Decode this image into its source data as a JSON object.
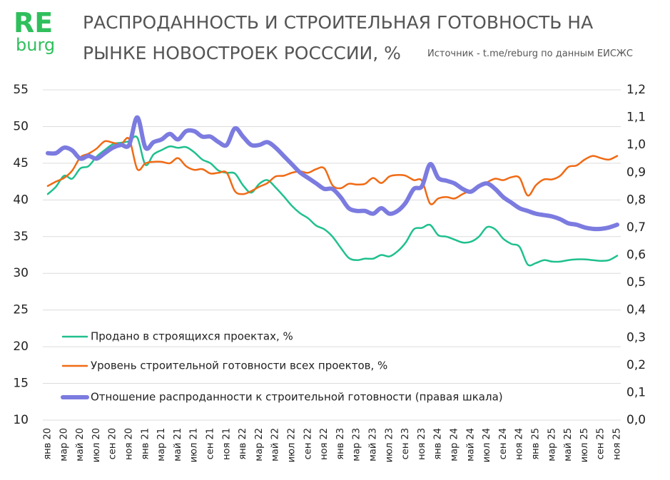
{
  "logo": {
    "top": "RE",
    "bottom": "burg"
  },
  "chart_data": {
    "type": "line",
    "title": "РАСПРОДАННОСТЬ И СТРОИТЕЛЬНАЯ ГОТОВНОСТЬ НА РЫНКЕ НОВОСТРОЕК РОСССИИ, %",
    "source": "Источник - t.me/reburg по данным ЕИСЖС",
    "categories": [
      "янв 20",
      null,
      "мар 20",
      null,
      "май 20",
      null,
      "июл 20",
      null,
      "сен 20",
      null,
      "ноя 20",
      null,
      "янв 21",
      null,
      "мар 21",
      null,
      "май 21",
      null,
      "июл 21",
      null,
      "сен 21",
      null,
      "ноя 21",
      null,
      "янв 22",
      null,
      "мар 22",
      null,
      "май 22",
      null,
      "июл 22",
      null,
      "сен 22",
      null,
      "ноя 22",
      null,
      "янв 23",
      null,
      "мар 23",
      null,
      "май 23",
      null,
      "июл 23",
      null,
      "сен 23",
      null,
      "ноя 23",
      null,
      "янв 24",
      null,
      "мар 24",
      null,
      "май 24",
      null,
      "июл 24",
      null,
      "сен 24",
      null,
      "ноя 24",
      null,
      "янв 25",
      null,
      "мар 25",
      null,
      "май 25",
      null,
      "июл 25",
      null,
      "сен 25",
      null,
      "ноя 25"
    ],
    "ylim": [
      10,
      55
    ],
    "yticks": [
      10,
      15,
      20,
      25,
      30,
      35,
      40,
      45,
      50,
      55
    ],
    "y2lim": [
      0,
      1.2
    ],
    "y2ticks": [
      {
        "value": 0,
        "label": "0,0"
      },
      {
        "value": 0.1,
        "label": "0,1"
      },
      {
        "value": 0.2,
        "label": "0,2"
      },
      {
        "value": 0.3,
        "label": "0,3"
      },
      {
        "value": 0.4,
        "label": "0,4"
      },
      {
        "value": 0.5,
        "label": "0,5"
      },
      {
        "value": 0.6,
        "label": "0,6"
      },
      {
        "value": 0.7,
        "label": "0,7"
      },
      {
        "value": 0.8,
        "label": "0,8"
      },
      {
        "value": 0.9,
        "label": "0,9"
      },
      {
        "value": 1,
        "label": "1,0"
      },
      {
        "value": 1.1,
        "label": "1,1"
      },
      {
        "value": 1.2,
        "label": "1,2"
      }
    ],
    "grid": true,
    "legend": "lower left",
    "series": [
      {
        "name": "Продано в строящихся проектах, %",
        "color": "#1fc08e",
        "width": 2.5,
        "values": [
          40.8,
          41.8,
          43.3,
          42.9,
          44.3,
          44.6,
          45.9,
          46.8,
          47.6,
          47.8,
          48,
          48.5,
          44.8,
          46.2,
          46.8,
          47.3,
          47.1,
          47.2,
          46.5,
          45.5,
          45,
          44,
          43.7,
          43.6,
          42,
          41,
          42.2,
          42.7,
          41.7,
          40.5,
          39.2,
          38.2,
          37.5,
          36.5,
          36,
          35,
          33.5,
          32.1,
          31.8,
          32,
          32,
          32.5,
          32.3,
          33,
          34.2,
          36,
          36.2,
          36.6,
          35.2,
          35,
          34.6,
          34.2,
          34.3,
          35,
          36.3,
          36,
          34.7,
          34,
          33.6,
          31.2,
          31.4,
          31.8,
          31.6,
          31.6,
          31.8,
          31.9,
          31.9,
          31.8,
          31.7,
          31.8,
          32.4
        ]
      },
      {
        "name": "Уровень строительной готовности всех проектов, %",
        "color": "#f06a14",
        "width": 2.5,
        "values": [
          41.9,
          42.5,
          43,
          44,
          45.8,
          46.3,
          47,
          48,
          47.8,
          47.6,
          48.3,
          44.2,
          45,
          45.2,
          45.2,
          45,
          45.7,
          44.6,
          44.1,
          44.2,
          43.6,
          43.7,
          43.7,
          41.2,
          40.8,
          41.2,
          41.8,
          42.3,
          43.2,
          43.3,
          43.7,
          43.9,
          43.7,
          44.2,
          44.3,
          42,
          41.6,
          42.2,
          42.1,
          42.2,
          43,
          42.3,
          43.2,
          43.4,
          43.3,
          42.7,
          42.6,
          39.5,
          40.2,
          40.4,
          40.2,
          40.8,
          41.3,
          41.8,
          42.4,
          42.9,
          42.7,
          43.1,
          43,
          40.6,
          42,
          42.8,
          42.8,
          43.3,
          44.5,
          44.7,
          45.5,
          46,
          45.7,
          45.5,
          46
        ]
      },
      {
        "name": "Отношение распроданности к строительной готовности (правая шкала)",
        "color": "#7b7be0",
        "width": 6,
        "axis": "y2",
        "values": [
          0.97,
          0.97,
          0.99,
          0.98,
          0.95,
          0.96,
          0.95,
          0.97,
          0.99,
          1,
          1,
          1.1,
          0.99,
          1.01,
          1.02,
          1.04,
          1.02,
          1.05,
          1.05,
          1.03,
          1.03,
          1.01,
          1,
          1.06,
          1.03,
          1,
          1,
          1.01,
          0.99,
          0.96,
          0.93,
          0.9,
          0.88,
          0.86,
          0.84,
          0.84,
          0.81,
          0.77,
          0.76,
          0.76,
          0.75,
          0.77,
          0.75,
          0.76,
          0.79,
          0.84,
          0.85,
          0.93,
          0.88,
          0.87,
          0.86,
          0.84,
          0.83,
          0.85,
          0.86,
          0.84,
          0.81,
          0.79,
          0.77,
          0.76,
          0.75,
          0.745,
          0.74,
          0.73,
          0.715,
          0.71,
          0.7,
          0.695,
          0.695,
          0.7,
          0.71
        ]
      }
    ]
  }
}
